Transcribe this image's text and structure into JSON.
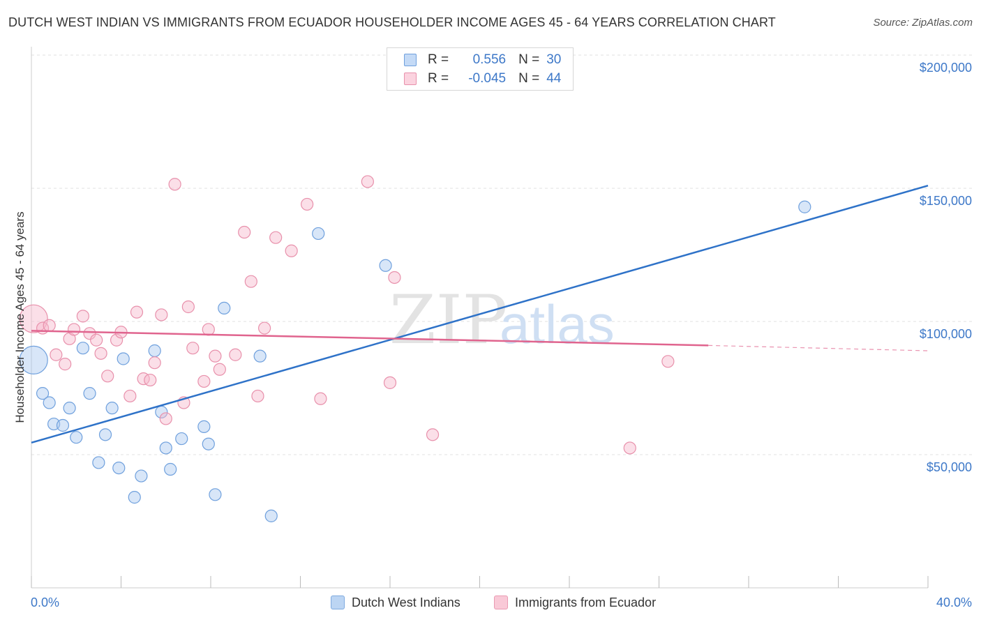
{
  "title": "DUTCH WEST INDIAN VS IMMIGRANTS FROM ECUADOR HOUSEHOLDER INCOME AGES 45 - 64 YEARS CORRELATION CHART",
  "source": "Source: ZipAtlas.com",
  "watermark": {
    "zip": "ZIP",
    "atlas": "atlas"
  },
  "legend": {
    "rows": [
      {
        "r_label": "R =",
        "r_value": "0.556",
        "n_label": "N =",
        "n_value": "30",
        "color": "#a8c8f0",
        "border": "#6fa0dd"
      },
      {
        "r_label": "R =",
        "r_value": "-0.045",
        "n_label": "N =",
        "n_value": "44",
        "color": "#f7b9cc",
        "border": "#e890ab"
      }
    ]
  },
  "bottom_legend": [
    {
      "label": "Dutch West Indians",
      "color": "#bcd5f3",
      "border": "#7ea9df"
    },
    {
      "label": "Immigrants from Ecuador",
      "color": "#f9c9d7",
      "border": "#e99ab2"
    }
  ],
  "chart_data": {
    "type": "scatter",
    "title": "DUTCH WEST INDIAN VS IMMIGRANTS FROM ECUADOR HOUSEHOLDER INCOME AGES 45 - 64 YEARS CORRELATION CHART",
    "xlabel": "",
    "ylabel": "Householder Income Ages 45 - 64 years",
    "xlim": [
      0,
      40
    ],
    "ylim": [
      5000,
      210000
    ],
    "x_tick_labels": [
      {
        "value": 0,
        "label": "0.0%"
      },
      {
        "value": 40,
        "label": "40.0%"
      }
    ],
    "y_tick_labels": [
      {
        "value": 50000,
        "label": "$50,000"
      },
      {
        "value": 100000,
        "label": "$100,000"
      },
      {
        "value": 150000,
        "label": "$150,000"
      },
      {
        "value": 200000,
        "label": "$200,000"
      }
    ],
    "grid": true,
    "legend_position": "top-center",
    "series": [
      {
        "name": "Dutch West Indians",
        "color": "#a8c8f0",
        "stroke": "#6fa0dd",
        "line_color": "#2e72c8",
        "trend": {
          "x": [
            0,
            40
          ],
          "y": [
            54500,
            151000
          ]
        },
        "points": [
          {
            "x": 0.1,
            "y": 85500,
            "size": "large"
          },
          {
            "x": 0.5,
            "y": 73000
          },
          {
            "x": 0.8,
            "y": 69500
          },
          {
            "x": 1.0,
            "y": 61500
          },
          {
            "x": 1.4,
            "y": 61000
          },
          {
            "x": 1.7,
            "y": 67500
          },
          {
            "x": 2.0,
            "y": 56500
          },
          {
            "x": 2.3,
            "y": 90000
          },
          {
            "x": 2.6,
            "y": 73000
          },
          {
            "x": 3.0,
            "y": 47000
          },
          {
            "x": 3.3,
            "y": 57500
          },
          {
            "x": 3.6,
            "y": 67500
          },
          {
            "x": 3.9,
            "y": 45000
          },
          {
            "x": 4.1,
            "y": 86000
          },
          {
            "x": 4.6,
            "y": 34000
          },
          {
            "x": 4.9,
            "y": 42000
          },
          {
            "x": 5.5,
            "y": 89000
          },
          {
            "x": 5.8,
            "y": 66000
          },
          {
            "x": 6.0,
            "y": 52500
          },
          {
            "x": 6.2,
            "y": 44500
          },
          {
            "x": 6.7,
            "y": 56000
          },
          {
            "x": 7.7,
            "y": 60500
          },
          {
            "x": 7.9,
            "y": 54000
          },
          {
            "x": 8.2,
            "y": 35000
          },
          {
            "x": 8.6,
            "y": 105000
          },
          {
            "x": 10.2,
            "y": 87000
          },
          {
            "x": 10.7,
            "y": 27000
          },
          {
            "x": 12.8,
            "y": 133000
          },
          {
            "x": 15.8,
            "y": 121000
          },
          {
            "x": 34.5,
            "y": 143000
          }
        ]
      },
      {
        "name": "Immigrants from Ecuador",
        "color": "#f7b9cc",
        "stroke": "#e890ab",
        "line_color": "#e0648e",
        "trend": {
          "x": [
            0,
            30.2
          ],
          "y": [
            96500,
            91000
          ]
        },
        "trend_dashed": {
          "x": [
            30.2,
            40
          ],
          "y": [
            91000,
            89000
          ]
        },
        "points": [
          {
            "x": 0.1,
            "y": 101000,
            "size": "large"
          },
          {
            "x": 0.5,
            "y": 97500
          },
          {
            "x": 0.8,
            "y": 98500
          },
          {
            "x": 1.1,
            "y": 87500
          },
          {
            "x": 1.5,
            "y": 84000
          },
          {
            "x": 1.7,
            "y": 93500
          },
          {
            "x": 1.9,
            "y": 97000
          },
          {
            "x": 2.3,
            "y": 102000
          },
          {
            "x": 2.6,
            "y": 95500
          },
          {
            "x": 2.9,
            "y": 93000
          },
          {
            "x": 3.1,
            "y": 88000
          },
          {
            "x": 3.4,
            "y": 79500
          },
          {
            "x": 3.8,
            "y": 93000
          },
          {
            "x": 4.0,
            "y": 96000
          },
          {
            "x": 4.4,
            "y": 72000
          },
          {
            "x": 4.7,
            "y": 103500
          },
          {
            "x": 5.0,
            "y": 78500
          },
          {
            "x": 5.3,
            "y": 78000
          },
          {
            "x": 5.5,
            "y": 84500
          },
          {
            "x": 5.8,
            "y": 102500
          },
          {
            "x": 6.0,
            "y": 63500
          },
          {
            "x": 6.4,
            "y": 151500
          },
          {
            "x": 6.8,
            "y": 69500
          },
          {
            "x": 7.0,
            "y": 105500
          },
          {
            "x": 7.2,
            "y": 90000
          },
          {
            "x": 7.7,
            "y": 77500
          },
          {
            "x": 7.9,
            "y": 97000
          },
          {
            "x": 8.2,
            "y": 87000
          },
          {
            "x": 8.4,
            "y": 82000
          },
          {
            "x": 9.1,
            "y": 87500
          },
          {
            "x": 9.5,
            "y": 133500
          },
          {
            "x": 9.8,
            "y": 115000
          },
          {
            "x": 10.1,
            "y": 72000
          },
          {
            "x": 10.4,
            "y": 97500
          },
          {
            "x": 10.9,
            "y": 131500
          },
          {
            "x": 11.6,
            "y": 126500
          },
          {
            "x": 12.3,
            "y": 144000
          },
          {
            "x": 12.9,
            "y": 71000
          },
          {
            "x": 15.0,
            "y": 152500
          },
          {
            "x": 16.0,
            "y": 77000
          },
          {
            "x": 16.2,
            "y": 116500
          },
          {
            "x": 17.9,
            "y": 57500
          },
          {
            "x": 26.7,
            "y": 52500
          },
          {
            "x": 28.4,
            "y": 85000
          }
        ]
      }
    ]
  }
}
